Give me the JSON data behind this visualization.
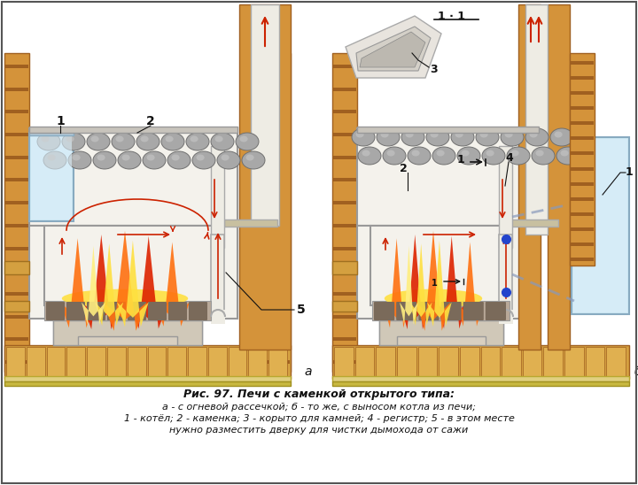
{
  "title_line1": "Рис. 97. Печи с каменкой открытого типа:",
  "title_line2": "а - с огневой рассечкой; б - то же, с выносом котла из печи;",
  "title_line3": "1 - котёл; 2 - каменка; 3 - корыто для камней; 4 - регистр; 5 - в этом месте",
  "title_line4": "нужно разместить дверку для чистки дымохода от сажи",
  "bg_color": "#ffffff",
  "wood_color": "#d4933a",
  "wood_dark": "#a06020",
  "wood_stripe": "#c07830",
  "stone_color": "#a8a8a8",
  "stone_dark": "#707070",
  "stone_light": "#cccccc",
  "water_color": "#cce8f4",
  "water_border": "#88aac0",
  "fire_yellow": "#ffe040",
  "fire_orange": "#ff7010",
  "fire_red": "#dd2200",
  "body_color": "#f4f2ec",
  "body_border": "#999999",
  "pipe_color": "#eeece4",
  "pipe_border": "#aaaaaa",
  "label_color": "#111111",
  "arrow_red": "#cc2200",
  "grate_color": "#b8a898",
  "base_color": "#d4a040",
  "fig_width": 7.2,
  "fig_height": 5.48,
  "dpi": 100
}
